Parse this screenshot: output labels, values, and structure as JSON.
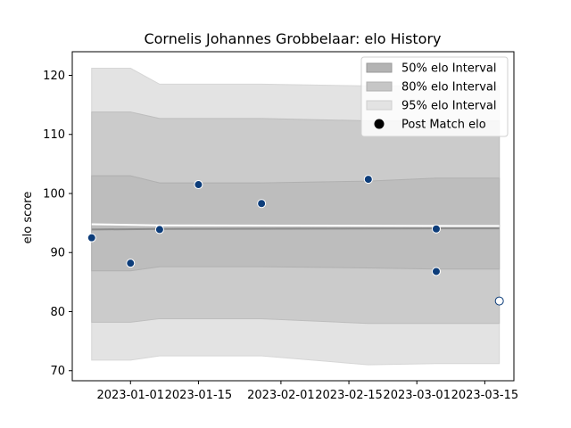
{
  "chart_data": {
    "type": "area",
    "title": "Cornelis Johannes Grobbelaar: elo History",
    "xlabel": "",
    "ylabel": "elo score",
    "xlim": [
      "2022-12-20",
      "2023-03-21"
    ],
    "ylim": [
      68.3,
      124
    ],
    "x_ticks": [
      "2023-01-01",
      "2023-01-15",
      "2023-02-01",
      "2023-02-15",
      "2023-03-01",
      "2023-03-15"
    ],
    "y_ticks": [
      70,
      80,
      90,
      100,
      110,
      120
    ],
    "grid": false,
    "legend_position": "top-right",
    "legend": [
      {
        "label": "50% elo Interval",
        "kind": "patch",
        "color": "#b3b3b3"
      },
      {
        "label": "80% elo Interval",
        "kind": "patch",
        "color": "#c6c6c6"
      },
      {
        "label": "95% elo Interval",
        "kind": "patch",
        "color": "#e3e3e3"
      },
      {
        "label": "Post Match elo",
        "kind": "marker",
        "color": "#000000"
      }
    ],
    "bands_x": [
      "2022-12-24",
      "2023-01-01",
      "2023-01-07",
      "2023-01-28",
      "2023-02-19",
      "2023-03-05",
      "2023-03-18"
    ],
    "band_95": {
      "upper": [
        121.2,
        121.2,
        118.5,
        118.5,
        118.2,
        118.2,
        118.2
      ],
      "lower": [
        71.8,
        71.8,
        72.5,
        72.5,
        71.0,
        71.2,
        71.2
      ]
    },
    "band_80": {
      "upper": [
        113.8,
        113.8,
        112.7,
        112.7,
        112.3,
        112.3,
        112.3
      ],
      "lower": [
        78.2,
        78.2,
        78.8,
        78.8,
        78.0,
        78.0,
        78.0
      ]
    },
    "band_50": {
      "upper": [
        103.0,
        103.0,
        101.8,
        101.8,
        102.1,
        102.6,
        102.6
      ],
      "lower": [
        86.9,
        86.9,
        87.6,
        87.6,
        87.4,
        87.2,
        87.2
      ]
    },
    "mean_line": {
      "x": [
        "2022-12-24",
        "2023-01-07",
        "2023-03-18"
      ],
      "y": [
        93.9,
        94.0,
        94.1
      ],
      "color": "#8c8c8c"
    },
    "white_line": {
      "x": [
        "2022-12-24",
        "2023-01-07",
        "2023-03-18"
      ],
      "y": [
        94.8,
        94.6,
        94.5
      ],
      "color": "#ffffff"
    },
    "points": {
      "x": [
        "2022-12-24",
        "2023-01-01",
        "2023-01-07",
        "2023-01-15",
        "2023-01-28",
        "2023-02-19",
        "2023-03-05",
        "2023-03-05",
        "2023-03-18"
      ],
      "y": [
        92.5,
        88.2,
        93.9,
        101.5,
        98.3,
        102.4,
        94.0,
        86.8,
        81.8
      ],
      "fill": [
        "#0d3d7a",
        "#0d3d7a",
        "#0d3d7a",
        "#0d3d7a",
        "#0d3d7a",
        "#0d3d7a",
        "#0d3d7a",
        "#0d3d7a",
        "#ffffff"
      ],
      "edge": "#0d3d7a"
    }
  }
}
